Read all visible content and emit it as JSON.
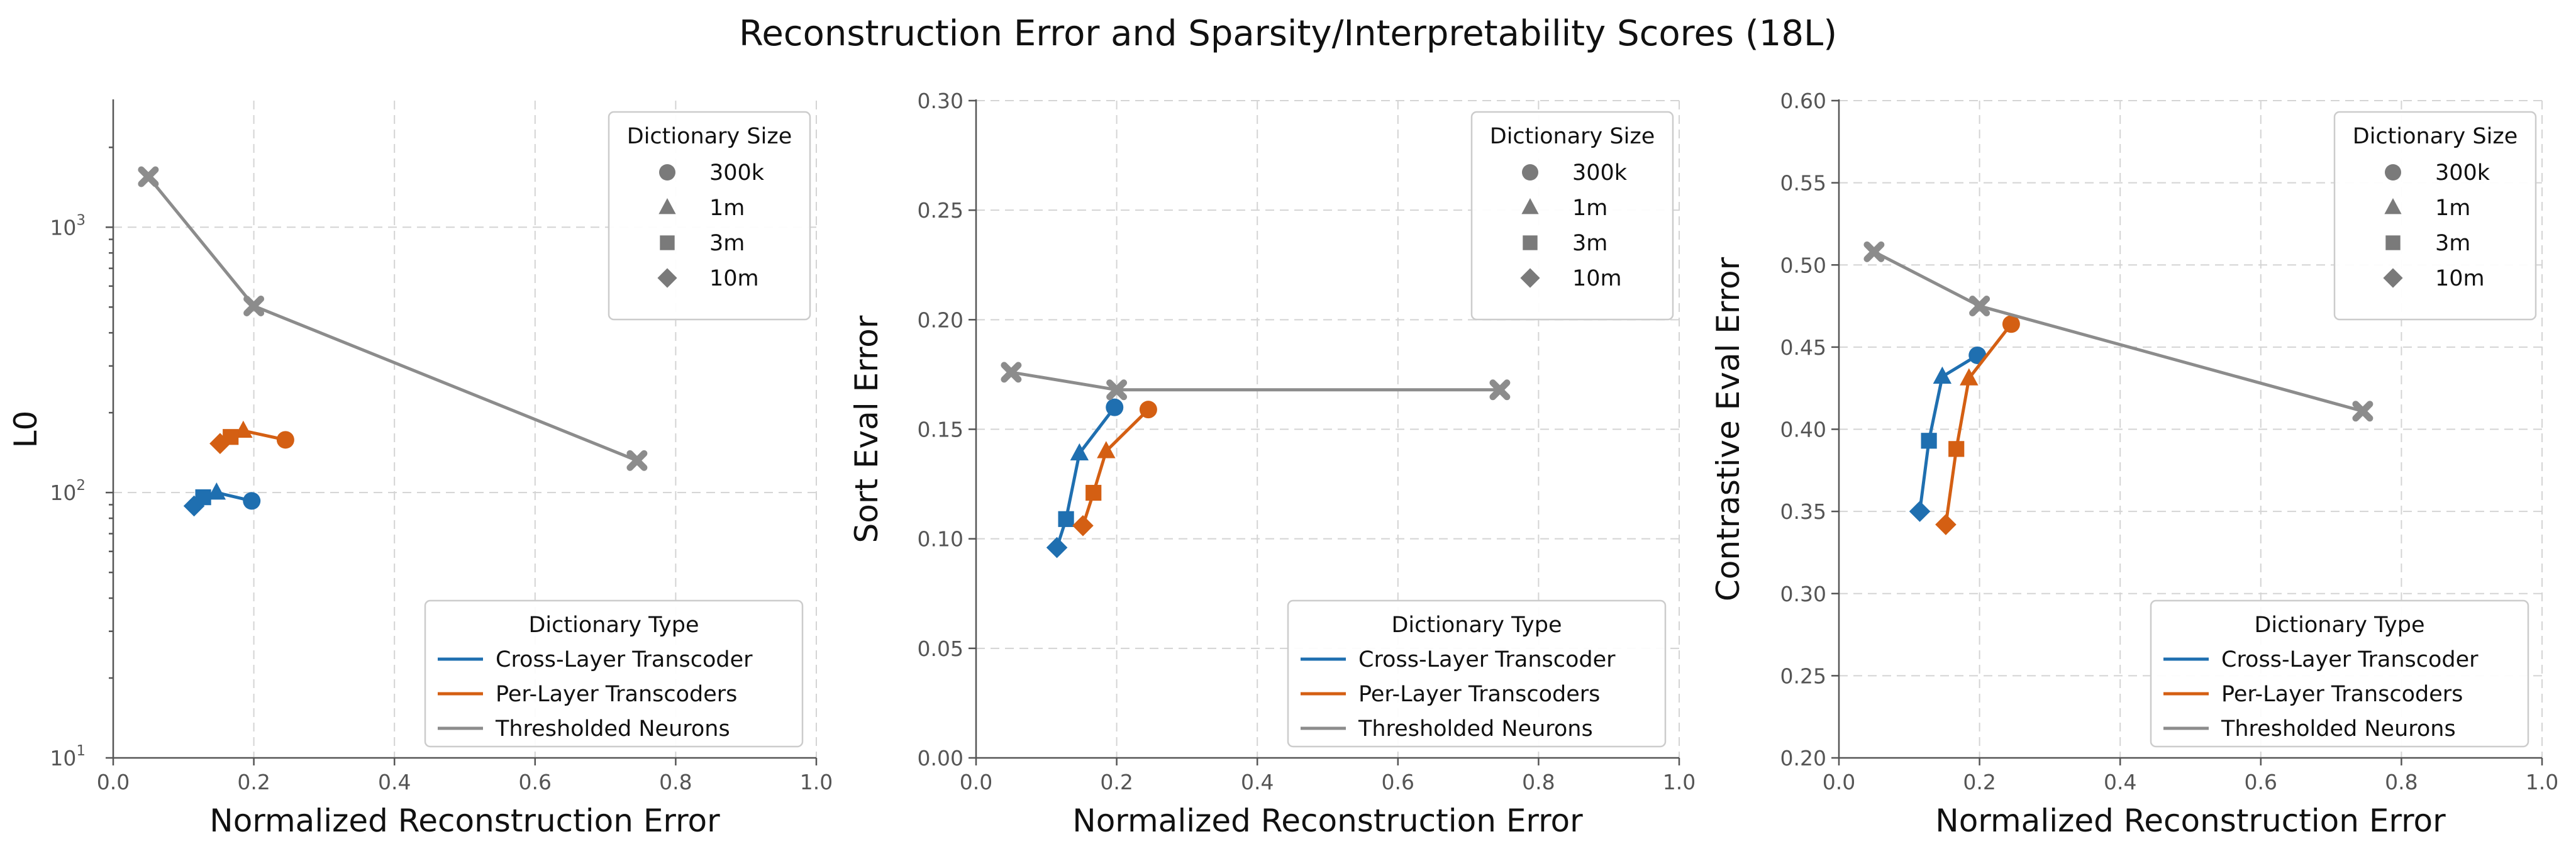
{
  "figure": {
    "title": "Reconstruction Error and Sparsity/Interpretability Scores (18L)"
  },
  "colors": {
    "Cross-Layer Transcoder": "#1f6fb0",
    "Per-Layer Transcoders": "#d45f13",
    "Thresholded Neurons": "#8c8c8c",
    "marker_legend": "#7a7a7a"
  },
  "marker_legend": {
    "title": "Dictionary Size",
    "items": [
      {
        "label": "300k",
        "shape": "circle"
      },
      {
        "label": "1m",
        "shape": "triangle"
      },
      {
        "label": "3m",
        "shape": "square"
      },
      {
        "label": "10m",
        "shape": "diamond"
      }
    ]
  },
  "line_legend": {
    "title": "Dictionary Type",
    "items": [
      "Cross-Layer Transcoder",
      "Per-Layer Transcoders",
      "Thresholded Neurons"
    ]
  },
  "chart_data": [
    {
      "type": "line",
      "xlabel": "Normalized Reconstruction Error",
      "ylabel": "L0",
      "xlim": [
        0.0,
        1.0
      ],
      "ylim": [
        10,
        3000
      ],
      "yscale": "log",
      "xticks": [
        "0.0",
        "0.2",
        "0.4",
        "0.6",
        "0.8",
        "1.0"
      ],
      "yticks": [
        {
          "value": 10,
          "base": "10",
          "exp": "1"
        },
        {
          "value": 100,
          "base": "10",
          "exp": "2"
        },
        {
          "value": 1000,
          "base": "10",
          "exp": "3"
        }
      ],
      "grid": true,
      "legend_markers": "top-right",
      "legend_lines": "bottom-right",
      "series": [
        {
          "name": "Cross-Layer Transcoder",
          "points": [
            {
              "x": 0.197,
              "y": 93,
              "shape": "circle"
            },
            {
              "x": 0.147,
              "y": 100,
              "shape": "triangle"
            },
            {
              "x": 0.128,
              "y": 96,
              "shape": "square"
            },
            {
              "x": 0.115,
              "y": 89,
              "shape": "diamond"
            }
          ]
        },
        {
          "name": "Per-Layer Transcoders",
          "points": [
            {
              "x": 0.245,
              "y": 158,
              "shape": "circle"
            },
            {
              "x": 0.185,
              "y": 171,
              "shape": "triangle"
            },
            {
              "x": 0.167,
              "y": 162,
              "shape": "square"
            },
            {
              "x": 0.152,
              "y": 153,
              "shape": "diamond"
            }
          ]
        },
        {
          "name": "Thresholded Neurons",
          "points": [
            {
              "x": 0.05,
              "y": 1550,
              "shape": "x"
            },
            {
              "x": 0.2,
              "y": 505,
              "shape": "x"
            },
            {
              "x": 0.745,
              "y": 132,
              "shape": "x"
            }
          ]
        }
      ]
    },
    {
      "type": "line",
      "xlabel": "Normalized Reconstruction Error",
      "ylabel": "Sort Eval Error",
      "xlim": [
        0.0,
        1.0
      ],
      "ylim": [
        0.0,
        0.3
      ],
      "yscale": "linear",
      "xticks": [
        "0.0",
        "0.2",
        "0.4",
        "0.6",
        "0.8",
        "1.0"
      ],
      "yticks": [
        {
          "value": 0.0,
          "label": "0.00"
        },
        {
          "value": 0.05,
          "label": "0.05"
        },
        {
          "value": 0.1,
          "label": "0.10"
        },
        {
          "value": 0.15,
          "label": "0.15"
        },
        {
          "value": 0.2,
          "label": "0.20"
        },
        {
          "value": 0.25,
          "label": "0.25"
        },
        {
          "value": 0.3,
          "label": "0.30"
        }
      ],
      "grid": true,
      "legend_markers": "top-right",
      "legend_lines": "bottom-right",
      "series": [
        {
          "name": "Cross-Layer Transcoder",
          "points": [
            {
              "x": 0.197,
              "y": 0.16,
              "shape": "circle"
            },
            {
              "x": 0.147,
              "y": 0.139,
              "shape": "triangle"
            },
            {
              "x": 0.128,
              "y": 0.109,
              "shape": "square"
            },
            {
              "x": 0.115,
              "y": 0.096,
              "shape": "diamond"
            }
          ]
        },
        {
          "name": "Per-Layer Transcoders",
          "points": [
            {
              "x": 0.245,
              "y": 0.159,
              "shape": "circle"
            },
            {
              "x": 0.185,
              "y": 0.14,
              "shape": "triangle"
            },
            {
              "x": 0.167,
              "y": 0.121,
              "shape": "square"
            },
            {
              "x": 0.152,
              "y": 0.106,
              "shape": "diamond"
            }
          ]
        },
        {
          "name": "Thresholded Neurons",
          "points": [
            {
              "x": 0.05,
              "y": 0.176,
              "shape": "x"
            },
            {
              "x": 0.2,
              "y": 0.168,
              "shape": "x"
            },
            {
              "x": 0.745,
              "y": 0.168,
              "shape": "x"
            }
          ]
        }
      ]
    },
    {
      "type": "line",
      "xlabel": "Normalized Reconstruction Error",
      "ylabel": "Contrastive Eval Error",
      "xlim": [
        0.0,
        1.0
      ],
      "ylim": [
        0.2,
        0.6
      ],
      "yscale": "linear",
      "xticks": [
        "0.0",
        "0.2",
        "0.4",
        "0.6",
        "0.8",
        "1.0"
      ],
      "yticks": [
        {
          "value": 0.2,
          "label": "0.20"
        },
        {
          "value": 0.25,
          "label": "0.25"
        },
        {
          "value": 0.3,
          "label": "0.30"
        },
        {
          "value": 0.35,
          "label": "0.35"
        },
        {
          "value": 0.4,
          "label": "0.40"
        },
        {
          "value": 0.45,
          "label": "0.45"
        },
        {
          "value": 0.5,
          "label": "0.50"
        },
        {
          "value": 0.55,
          "label": "0.55"
        },
        {
          "value": 0.6,
          "label": "0.60"
        }
      ],
      "grid": true,
      "legend_markers": "top-right",
      "legend_lines": "bottom-right",
      "series": [
        {
          "name": "Cross-Layer Transcoder",
          "points": [
            {
              "x": 0.197,
              "y": 0.445,
              "shape": "circle"
            },
            {
              "x": 0.147,
              "y": 0.432,
              "shape": "triangle"
            },
            {
              "x": 0.128,
              "y": 0.393,
              "shape": "square"
            },
            {
              "x": 0.115,
              "y": 0.35,
              "shape": "diamond"
            }
          ]
        },
        {
          "name": "Per-Layer Transcoders",
          "points": [
            {
              "x": 0.245,
              "y": 0.464,
              "shape": "circle"
            },
            {
              "x": 0.185,
              "y": 0.431,
              "shape": "triangle"
            },
            {
              "x": 0.167,
              "y": 0.388,
              "shape": "square"
            },
            {
              "x": 0.152,
              "y": 0.342,
              "shape": "diamond"
            }
          ]
        },
        {
          "name": "Thresholded Neurons",
          "points": [
            {
              "x": 0.05,
              "y": 0.508,
              "shape": "x"
            },
            {
              "x": 0.2,
              "y": 0.475,
              "shape": "x"
            },
            {
              "x": 0.745,
              "y": 0.411,
              "shape": "x"
            }
          ]
        }
      ]
    }
  ]
}
